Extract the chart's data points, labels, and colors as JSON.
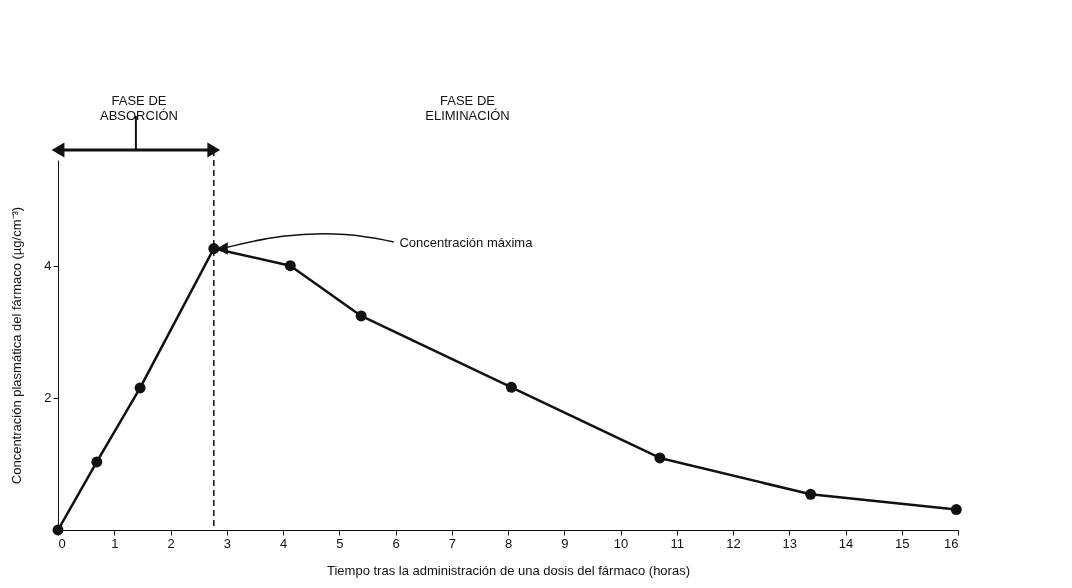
{
  "chart_data": {
    "type": "line",
    "xlabel": "Tiempo tras la administración de una dosis del fármaco (horas)",
    "ylabel": "Concentración plasmática del fármaco (µg/cm⁻³)",
    "x": [
      0,
      0.69,
      1.46,
      2.77,
      4.13,
      5.39,
      8.06,
      10.7,
      13.38,
      15.97
    ],
    "series": [
      {
        "color": "#111111",
        "values": [
          0,
          1.03,
          2.15,
          4.26,
          4.0,
          3.24,
          2.16,
          1.09,
          0.54,
          0.31
        ]
      }
    ],
    "xlim": [
      0,
      16
    ],
    "xticks": [
      0,
      1,
      2,
      3,
      4,
      5,
      6,
      7,
      8,
      9,
      10,
      11,
      12,
      13,
      14,
      15,
      16
    ],
    "ylim": [
      0,
      5.6
    ],
    "yticks": [
      2,
      4
    ],
    "ref_lines": [
      {
        "axis": "x",
        "value": 2.77,
        "line_style": "dashed",
        "color": "#111111"
      }
    ],
    "annotations": [
      "FASE DE\nABSORCIÓN",
      "FASE DE\nELIMINACIÓN",
      {
        "text": "Concentración máxima",
        "x": 2.77,
        "y": 4.26
      }
    ],
    "marker": "circle",
    "line_style": "solid",
    "grid": false
  }
}
